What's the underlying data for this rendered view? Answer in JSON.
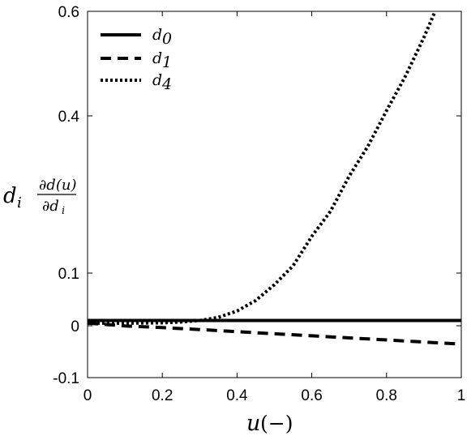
{
  "chart_data": {
    "type": "line",
    "x_ticks": [
      "0",
      "0.2",
      "0.4",
      "0.6",
      "0.8",
      "1"
    ],
    "y_ticks": [
      "-0.1",
      "0",
      "0.1",
      "0.4",
      "0.6"
    ],
    "y_tick_values": [
      -0.1,
      0,
      0.1,
      0.4,
      0.6
    ],
    "xlim": [
      0,
      1
    ],
    "ylim": [
      -0.1,
      0.6
    ],
    "y_scale": "piecewise (expanded near zero)",
    "xlabel": {
      "var": "u",
      "paren": "(−)"
    },
    "ylabel": {
      "d": "d",
      "i": "i",
      "num": "∂d(u)",
      "den_d": "∂d",
      "den_i": "i"
    },
    "legend_position": "top-left",
    "grid": false,
    "series": [
      {
        "name": "d",
        "subscript": "0",
        "style": "solid",
        "x": [
          0,
          0.2,
          0.4,
          0.6,
          0.8,
          1.0
        ],
        "y": [
          0.01,
          0.01,
          0.01,
          0.01,
          0.01,
          0.01
        ]
      },
      {
        "name": "d",
        "subscript": "1",
        "style": "dashed",
        "x": [
          0,
          0.1,
          0.2,
          0.3,
          0.4,
          0.5,
          0.6,
          0.7,
          0.8,
          0.9,
          1.0
        ],
        "y": [
          0.005,
          -0.0003,
          -0.0036,
          -0.0074,
          -0.0114,
          -0.0154,
          -0.0194,
          -0.0234,
          -0.0274,
          -0.0314,
          -0.0354
        ]
      },
      {
        "name": "d",
        "subscript": "4",
        "style": "dotted",
        "x": [
          0,
          0.1,
          0.2,
          0.25,
          0.3,
          0.35,
          0.4,
          0.45,
          0.5,
          0.55,
          0.6,
          0.65,
          0.7,
          0.75,
          0.8,
          0.85,
          0.9,
          0.93
        ],
        "y": [
          0.005,
          0.0048,
          0.0056,
          0.0071,
          0.01,
          0.016,
          0.028,
          0.048,
          0.078,
          0.114,
          0.17,
          0.218,
          0.285,
          0.342,
          0.41,
          0.475,
          0.55,
          0.6
        ]
      }
    ]
  }
}
